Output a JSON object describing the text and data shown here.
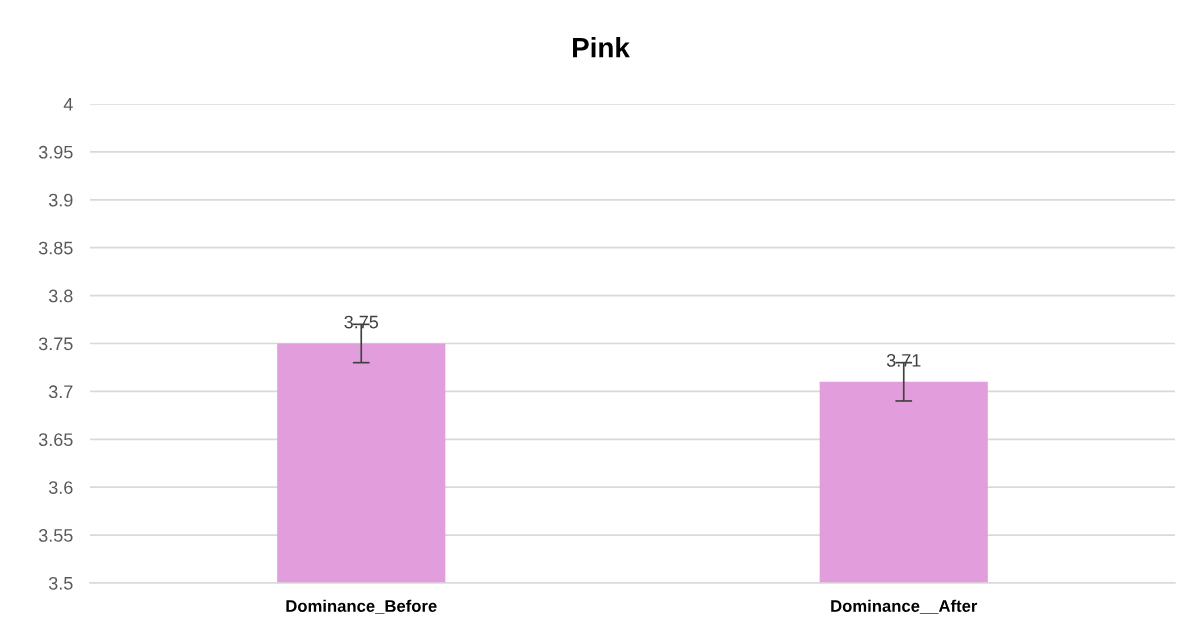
{
  "chart_data": {
    "type": "bar",
    "title": "Pink",
    "categories": [
      "Dominance_Before",
      "Dominance__After"
    ],
    "values": [
      3.75,
      3.71
    ],
    "errors": [
      0.02,
      0.02
    ],
    "color": "#e29edc",
    "ylim": [
      3.5,
      4
    ],
    "yticks": [
      3.5,
      3.55,
      3.6,
      3.65,
      3.7,
      3.75,
      3.8,
      3.85,
      3.9,
      3.95,
      4
    ],
    "grid": "y",
    "data_labels": true
  }
}
